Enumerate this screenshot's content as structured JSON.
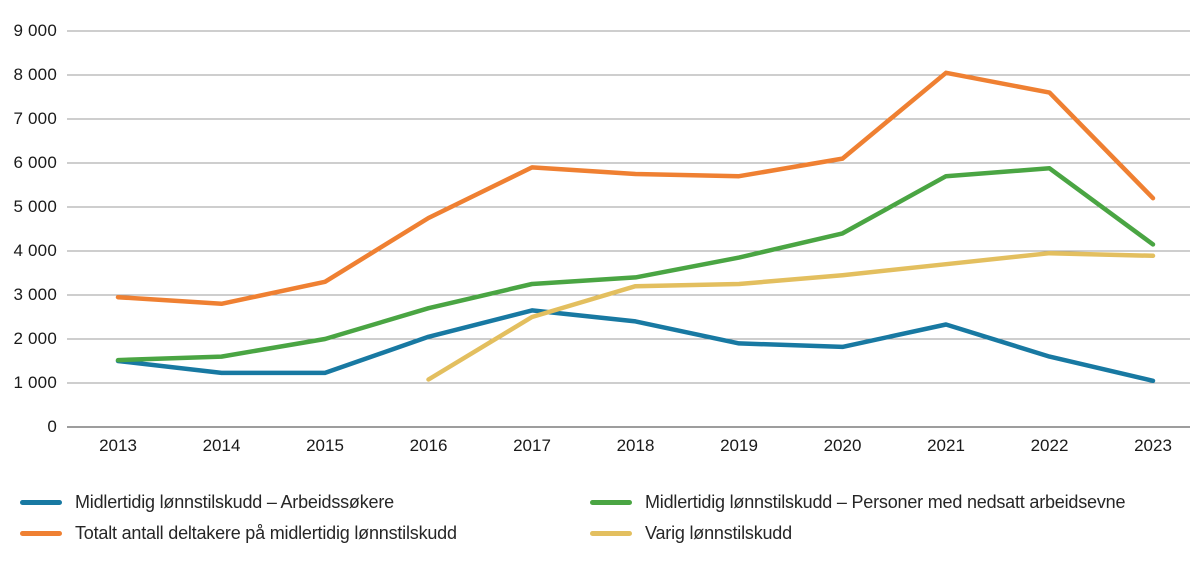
{
  "chart_data": {
    "type": "line",
    "categories": [
      "2013",
      "2014",
      "2015",
      "2016",
      "2017",
      "2018",
      "2019",
      "2020",
      "2021",
      "2022",
      "2023"
    ],
    "series": [
      {
        "key": "midlertidig-lonnstilskudd-arbeidssokere",
        "name": "Midlertidig lønnstilskudd – Arbeidssøkere",
        "color": "#1879a2",
        "values": [
          1500,
          1230,
          1230,
          2050,
          2650,
          2400,
          1900,
          1820,
          2330,
          1600,
          1050
        ]
      },
      {
        "key": "totalt-antall-deltakere-midlertidig-lonnstilskudd",
        "name": "Totalt antall deltakere på midlertidig lønnstilskudd",
        "color": "#ef8032",
        "values": [
          2950,
          2800,
          3300,
          4750,
          5900,
          5750,
          5700,
          6100,
          8050,
          7600,
          5200
        ]
      },
      {
        "key": "midlertidig-lonnstilskudd-nedsatt-arbeidsevne",
        "name": "Midlertidig lønnstilskudd – Personer med nedsatt arbeidsevne",
        "color": "#4aa543",
        "values": [
          1520,
          1600,
          2000,
          2700,
          3250,
          3400,
          3850,
          4400,
          5700,
          5880,
          4150
        ]
      },
      {
        "key": "varig-lonnstilskudd",
        "name": "Varig lønnstilskudd",
        "color": "#e3bf5f",
        "values": [
          null,
          null,
          null,
          1080,
          2500,
          3200,
          3250,
          3450,
          3700,
          3950,
          3890
        ]
      }
    ],
    "title": "",
    "xlabel": "",
    "ylabel": "",
    "ylim": [
      0,
      9000
    ],
    "y_tick_step": 1000,
    "y_tick_labels": [
      "0",
      "1 000",
      "2 000",
      "3 000",
      "4 000",
      "5 000",
      "6 000",
      "7 000",
      "8 000",
      "9 000"
    ],
    "grid": "horizontal-only",
    "gridline_color": "#9d9d9d",
    "zero_line_color": "#7d7d7d",
    "legend_position": "bottom",
    "legend_columns": 2,
    "legend_display_order": [
      0,
      2,
      1,
      3
    ]
  }
}
